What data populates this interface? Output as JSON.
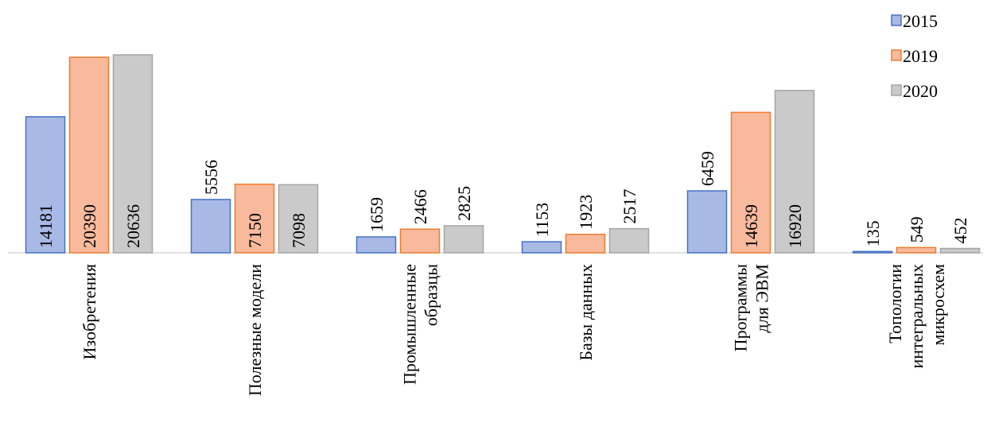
{
  "chart_data": {
    "type": "bar",
    "categories": [
      [
        "Изобретения"
      ],
      [
        "Полезные модели"
      ],
      [
        "Промышленные",
        "образцы"
      ],
      [
        "Базы данных"
      ],
      [
        "Программы",
        "для  ЭВМ"
      ],
      [
        "Топологии",
        "интегральных",
        "микросхем"
      ]
    ],
    "series": [
      {
        "name": "2015",
        "color": "#a9b9e6",
        "values": [
          14181,
          5556,
          1659,
          1153,
          6459,
          135
        ]
      },
      {
        "name": "2019",
        "color": "#f8b99c",
        "values": [
          20390,
          7150,
          2466,
          1923,
          14639,
          549
        ]
      },
      {
        "name": "2020",
        "color": "#cacaca",
        "values": [
          20636,
          7098,
          2825,
          2517,
          16920,
          452
        ]
      }
    ],
    "legend": "top-right"
  }
}
